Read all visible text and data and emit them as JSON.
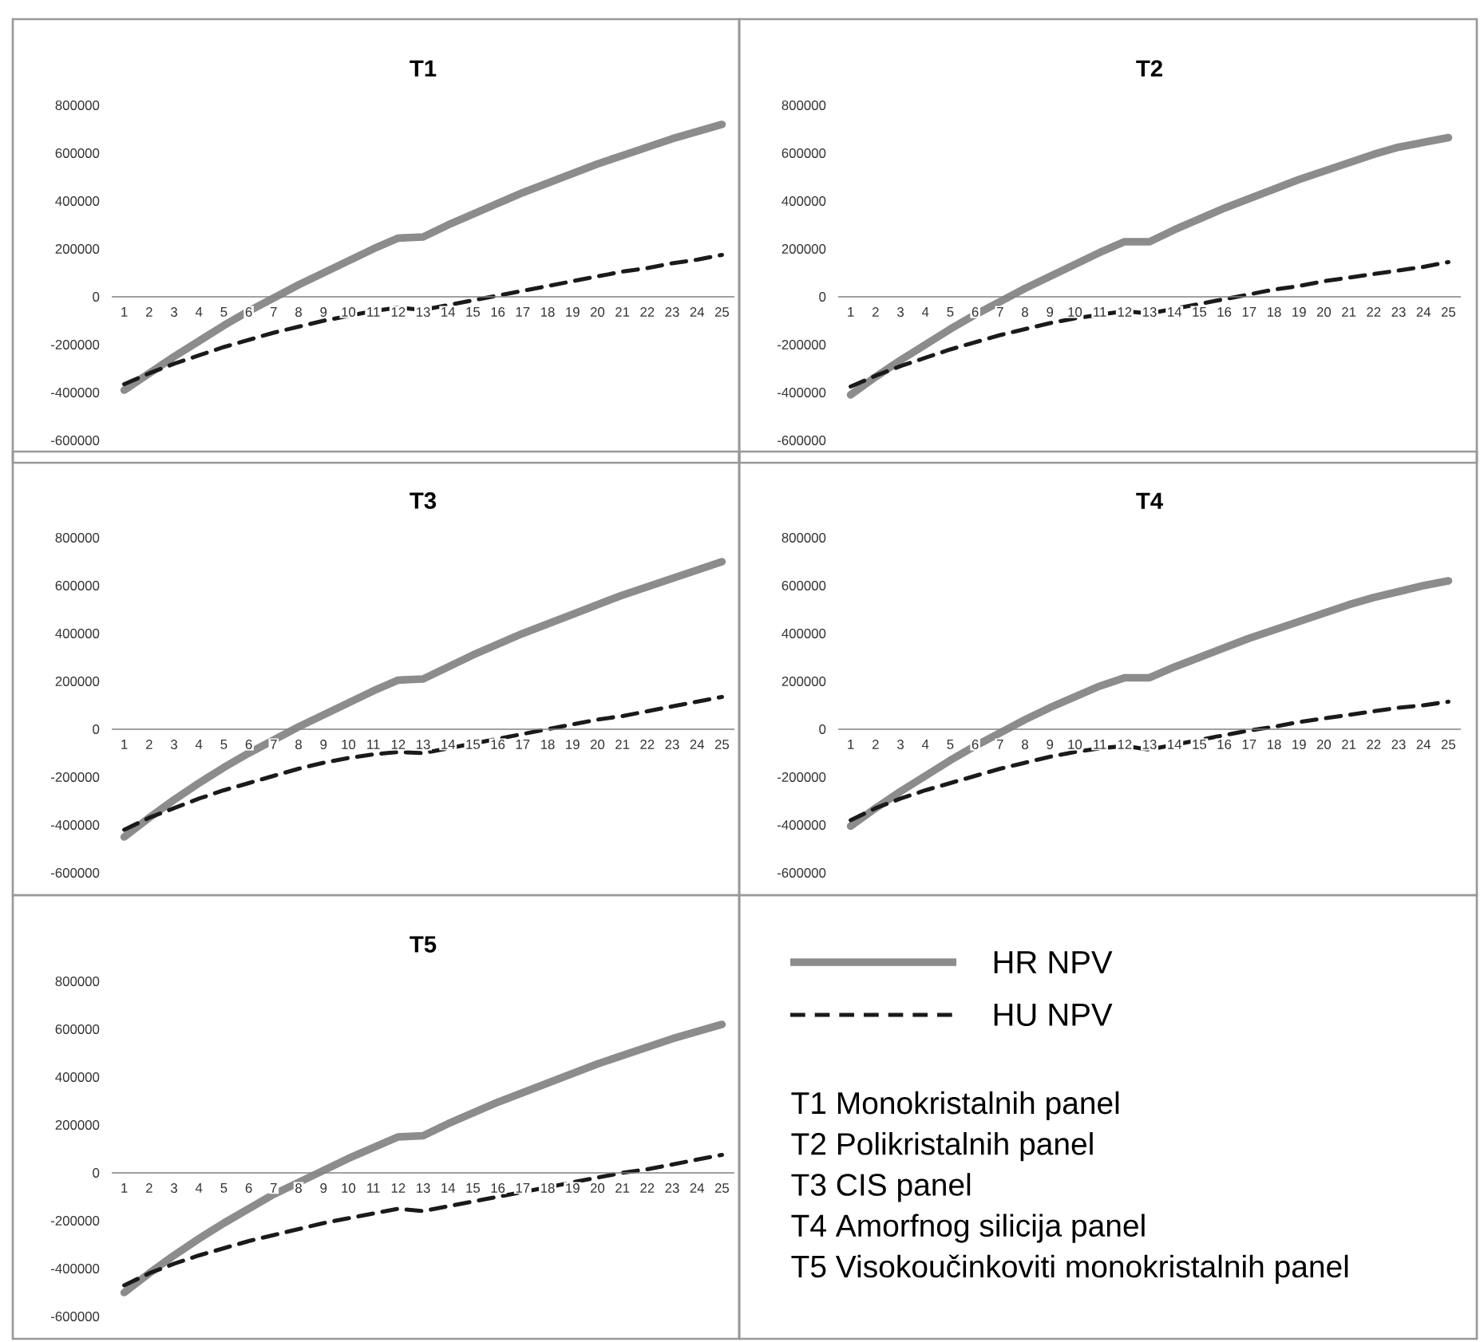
{
  "chart_data": [
    {
      "type": "line",
      "title": "T1",
      "categories": [
        "1",
        "2",
        "3",
        "4",
        "5",
        "6",
        "7",
        "8",
        "9",
        "10",
        "11",
        "12",
        "13",
        "14",
        "15",
        "16",
        "17",
        "18",
        "19",
        "20",
        "21",
        "22",
        "23",
        "24",
        "25"
      ],
      "ylim": [
        -600000,
        800000
      ],
      "yticks": [
        -600000,
        -400000,
        -200000,
        0,
        200000,
        400000,
        600000,
        800000
      ],
      "series": [
        {
          "name": "HR NPV",
          "color": "#8c8c8c",
          "line_style": "solid",
          "values": [
            -390000,
            -320000,
            -250000,
            -185000,
            -120000,
            -60000,
            -5000,
            50000,
            100000,
            150000,
            200000,
            245000,
            250000,
            300000,
            345000,
            390000,
            435000,
            475000,
            515000,
            555000,
            590000,
            625000,
            660000,
            690000,
            720000
          ]
        },
        {
          "name": "HU NPV",
          "color": "#1a1a1a",
          "line_style": "dashed",
          "values": [
            -365000,
            -320000,
            -280000,
            -245000,
            -210000,
            -180000,
            -150000,
            -125000,
            -100000,
            -80000,
            -60000,
            -45000,
            -55000,
            -35000,
            -15000,
            5000,
            25000,
            45000,
            65000,
            85000,
            105000,
            120000,
            140000,
            155000,
            175000
          ]
        }
      ]
    },
    {
      "type": "line",
      "title": "T2",
      "categories": [
        "1",
        "2",
        "3",
        "4",
        "5",
        "6",
        "7",
        "8",
        "9",
        "10",
        "11",
        "12",
        "13",
        "14",
        "15",
        "16",
        "17",
        "18",
        "19",
        "20",
        "21",
        "22",
        "23",
        "24",
        "25"
      ],
      "ylim": [
        -600000,
        800000
      ],
      "yticks": [
        -600000,
        -400000,
        -200000,
        0,
        200000,
        400000,
        600000,
        800000
      ],
      "series": [
        {
          "color": "#8c8c8c",
          "line_style": "solid",
          "values": [
            -410000,
            -335000,
            -265000,
            -200000,
            -135000,
            -75000,
            -20000,
            35000,
            85000,
            135000,
            185000,
            230000,
            230000,
            280000,
            325000,
            370000,
            410000,
            450000,
            490000,
            525000,
            560000,
            595000,
            625000,
            645000,
            665000
          ]
        },
        {
          "color": "#1a1a1a",
          "line_style": "dashed",
          "values": [
            -375000,
            -330000,
            -290000,
            -255000,
            -220000,
            -190000,
            -160000,
            -135000,
            -110000,
            -90000,
            -75000,
            -60000,
            -70000,
            -50000,
            -30000,
            -10000,
            10000,
            30000,
            45000,
            65000,
            80000,
            95000,
            110000,
            125000,
            145000
          ]
        }
      ]
    },
    {
      "type": "line",
      "title": "T3",
      "categories": [
        "1",
        "2",
        "3",
        "4",
        "5",
        "6",
        "7",
        "8",
        "9",
        "10",
        "11",
        "12",
        "13",
        "14",
        "15",
        "16",
        "17",
        "18",
        "19",
        "20",
        "21",
        "22",
        "23",
        "24",
        "25"
      ],
      "ylim": [
        -600000,
        800000
      ],
      "yticks": [
        -600000,
        -400000,
        -200000,
        0,
        200000,
        400000,
        600000,
        800000
      ],
      "series": [
        {
          "color": "#8c8c8c",
          "line_style": "solid",
          "values": [
            -450000,
            -370000,
            -295000,
            -225000,
            -160000,
            -100000,
            -45000,
            10000,
            60000,
            110000,
            160000,
            205000,
            210000,
            260000,
            310000,
            355000,
            400000,
            440000,
            480000,
            520000,
            560000,
            595000,
            630000,
            665000,
            700000
          ]
        },
        {
          "color": "#1a1a1a",
          "line_style": "dashed",
          "values": [
            -420000,
            -370000,
            -330000,
            -290000,
            -255000,
            -225000,
            -195000,
            -165000,
            -140000,
            -120000,
            -105000,
            -95000,
            -100000,
            -80000,
            -60000,
            -40000,
            -20000,
            0,
            20000,
            40000,
            55000,
            75000,
            95000,
            115000,
            135000
          ]
        }
      ]
    },
    {
      "type": "line",
      "title": "T4",
      "categories": [
        "1",
        "2",
        "3",
        "4",
        "5",
        "6",
        "7",
        "8",
        "9",
        "10",
        "11",
        "12",
        "13",
        "14",
        "15",
        "16",
        "17",
        "18",
        "19",
        "20",
        "21",
        "22",
        "23",
        "24",
        "25"
      ],
      "ylim": [
        -600000,
        800000
      ],
      "yticks": [
        -600000,
        -400000,
        -200000,
        0,
        200000,
        400000,
        600000,
        800000
      ],
      "series": [
        {
          "color": "#8c8c8c",
          "line_style": "solid",
          "values": [
            -405000,
            -330000,
            -260000,
            -195000,
            -130000,
            -70000,
            -15000,
            40000,
            90000,
            135000,
            180000,
            215000,
            215000,
            260000,
            300000,
            340000,
            380000,
            415000,
            450000,
            485000,
            520000,
            550000,
            575000,
            600000,
            620000
          ]
        },
        {
          "color": "#1a1a1a",
          "line_style": "dashed",
          "values": [
            -380000,
            -330000,
            -290000,
            -255000,
            -225000,
            -195000,
            -165000,
            -140000,
            -115000,
            -95000,
            -80000,
            -70000,
            -85000,
            -65000,
            -45000,
            -25000,
            -5000,
            10000,
            30000,
            45000,
            60000,
            75000,
            90000,
            100000,
            115000
          ]
        }
      ]
    },
    {
      "type": "line",
      "title": "T5",
      "categories": [
        "1",
        "2",
        "3",
        "4",
        "5",
        "6",
        "7",
        "8",
        "9",
        "10",
        "11",
        "12",
        "13",
        "14",
        "15",
        "16",
        "17",
        "18",
        "19",
        "20",
        "21",
        "22",
        "23",
        "24",
        "25"
      ],
      "ylim": [
        -600000,
        800000
      ],
      "yticks": [
        -600000,
        -400000,
        -200000,
        0,
        200000,
        400000,
        600000,
        800000
      ],
      "series": [
        {
          "color": "#8c8c8c",
          "line_style": "solid",
          "values": [
            -500000,
            -420000,
            -345000,
            -275000,
            -210000,
            -150000,
            -90000,
            -40000,
            10000,
            60000,
            105000,
            150000,
            155000,
            205000,
            250000,
            295000,
            335000,
            375000,
            415000,
            455000,
            490000,
            525000,
            560000,
            590000,
            620000
          ]
        },
        {
          "color": "#1a1a1a",
          "line_style": "dashed",
          "values": [
            -470000,
            -420000,
            -380000,
            -345000,
            -315000,
            -285000,
            -260000,
            -235000,
            -210000,
            -190000,
            -170000,
            -150000,
            -160000,
            -140000,
            -120000,
            -100000,
            -80000,
            -60000,
            -40000,
            -20000,
            0,
            15000,
            35000,
            55000,
            75000
          ]
        }
      ]
    },
    {
      "type": "other",
      "annotations": [
        "T1 Monokristalnih panel",
        "T2 Polikristalnih panel",
        "T3 CIS panel",
        "T4 Amorfnog silicija panel",
        "T5 Visokoučinkoviti monokristalnih panel"
      ]
    }
  ]
}
